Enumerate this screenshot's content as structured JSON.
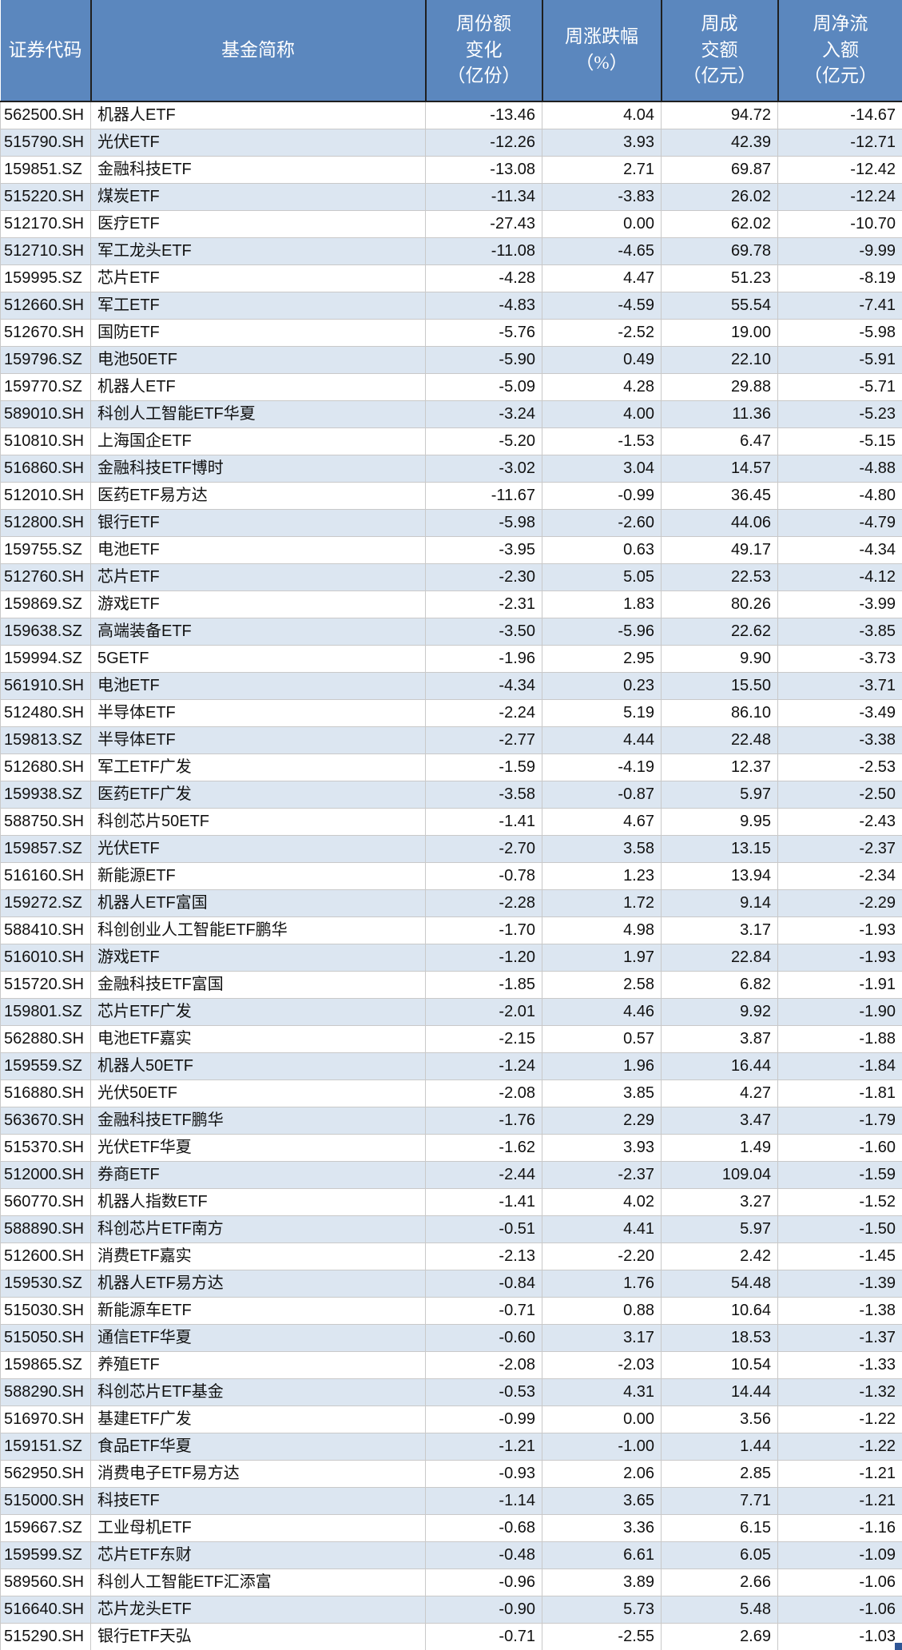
{
  "colors": {
    "header_bg": "#5b87be",
    "header_text": "#ffffff",
    "stripe": "#dce6f1",
    "grid": "#c9c9c9",
    "header_divider": "#1f1f1f",
    "fill_handle": "#2e5596"
  },
  "chart_data": {
    "type": "table",
    "title": "",
    "columns": [
      {
        "key": "code",
        "label": "证券代码"
      },
      {
        "key": "name",
        "label": "基金简称"
      },
      {
        "key": "share_change",
        "label": "周份额\n变化\n（亿份）"
      },
      {
        "key": "pct_change",
        "label": "周涨跌幅\n（%）"
      },
      {
        "key": "turnover",
        "label": "周成\n交额\n（亿元）"
      },
      {
        "key": "net_inflow",
        "label": "周净流\n入额\n（亿元）"
      }
    ],
    "rows": [
      [
        "562500.SH",
        "机器人ETF",
        "-13.46",
        "4.04",
        "94.72",
        "-14.67"
      ],
      [
        "515790.SH",
        "光伏ETF",
        "-12.26",
        "3.93",
        "42.39",
        "-12.71"
      ],
      [
        "159851.SZ",
        "金融科技ETF",
        "-13.08",
        "2.71",
        "69.87",
        "-12.42"
      ],
      [
        "515220.SH",
        "煤炭ETF",
        "-11.34",
        "-3.83",
        "26.02",
        "-12.24"
      ],
      [
        "512170.SH",
        "医疗ETF",
        "-27.43",
        "0.00",
        "62.02",
        "-10.70"
      ],
      [
        "512710.SH",
        "军工龙头ETF",
        "-11.08",
        "-4.65",
        "69.78",
        "-9.99"
      ],
      [
        "159995.SZ",
        "芯片ETF",
        "-4.28",
        "4.47",
        "51.23",
        "-8.19"
      ],
      [
        "512660.SH",
        "军工ETF",
        "-4.83",
        "-4.59",
        "55.54",
        "-7.41"
      ],
      [
        "512670.SH",
        "国防ETF",
        "-5.76",
        "-2.52",
        "19.00",
        "-5.98"
      ],
      [
        "159796.SZ",
        "电池50ETF",
        "-5.90",
        "0.49",
        "22.10",
        "-5.91"
      ],
      [
        "159770.SZ",
        "机器人ETF",
        "-5.09",
        "4.28",
        "29.88",
        "-5.71"
      ],
      [
        "589010.SH",
        "科创人工智能ETF华夏",
        "-3.24",
        "4.00",
        "11.36",
        "-5.23"
      ],
      [
        "510810.SH",
        "上海国企ETF",
        "-5.20",
        "-1.53",
        "6.47",
        "-5.15"
      ],
      [
        "516860.SH",
        "金融科技ETF博时",
        "-3.02",
        "3.04",
        "14.57",
        "-4.88"
      ],
      [
        "512010.SH",
        "医药ETF易方达",
        "-11.67",
        "-0.99",
        "36.45",
        "-4.80"
      ],
      [
        "512800.SH",
        "银行ETF",
        "-5.98",
        "-2.60",
        "44.06",
        "-4.79"
      ],
      [
        "159755.SZ",
        "电池ETF",
        "-3.95",
        "0.63",
        "49.17",
        "-4.34"
      ],
      [
        "512760.SH",
        "芯片ETF",
        "-2.30",
        "5.05",
        "22.53",
        "-4.12"
      ],
      [
        "159869.SZ",
        "游戏ETF",
        "-2.31",
        "1.83",
        "80.26",
        "-3.99"
      ],
      [
        "159638.SZ",
        "高端装备ETF",
        "-3.50",
        "-5.96",
        "22.62",
        "-3.85"
      ],
      [
        "159994.SZ",
        "5GETF",
        "-1.96",
        "2.95",
        "9.90",
        "-3.73"
      ],
      [
        "561910.SH",
        "电池ETF",
        "-4.34",
        "0.23",
        "15.50",
        "-3.71"
      ],
      [
        "512480.SH",
        "半导体ETF",
        "-2.24",
        "5.19",
        "86.10",
        "-3.49"
      ],
      [
        "159813.SZ",
        "半导体ETF",
        "-2.77",
        "4.44",
        "22.48",
        "-3.38"
      ],
      [
        "512680.SH",
        "军工ETF广发",
        "-1.59",
        "-4.19",
        "12.37",
        "-2.53"
      ],
      [
        "159938.SZ",
        "医药ETF广发",
        "-3.58",
        "-0.87",
        "5.97",
        "-2.50"
      ],
      [
        "588750.SH",
        "科创芯片50ETF",
        "-1.41",
        "4.67",
        "9.95",
        "-2.43"
      ],
      [
        "159857.SZ",
        "光伏ETF",
        "-2.70",
        "3.58",
        "13.15",
        "-2.37"
      ],
      [
        "516160.SH",
        "新能源ETF",
        "-0.78",
        "1.23",
        "13.94",
        "-2.34"
      ],
      [
        "159272.SZ",
        "机器人ETF富国",
        "-2.28",
        "1.72",
        "9.14",
        "-2.29"
      ],
      [
        "588410.SH",
        "科创创业人工智能ETF鹏华",
        "-1.70",
        "4.98",
        "3.17",
        "-1.93"
      ],
      [
        "516010.SH",
        "游戏ETF",
        "-1.20",
        "1.97",
        "22.84",
        "-1.93"
      ],
      [
        "515720.SH",
        "金融科技ETF富国",
        "-1.85",
        "2.58",
        "6.82",
        "-1.91"
      ],
      [
        "159801.SZ",
        "芯片ETF广发",
        "-2.01",
        "4.46",
        "9.92",
        "-1.90"
      ],
      [
        "562880.SH",
        "电池ETF嘉实",
        "-2.15",
        "0.57",
        "3.87",
        "-1.88"
      ],
      [
        "159559.SZ",
        "机器人50ETF",
        "-1.24",
        "1.96",
        "16.44",
        "-1.84"
      ],
      [
        "516880.SH",
        "光伏50ETF",
        "-2.08",
        "3.85",
        "4.27",
        "-1.81"
      ],
      [
        "563670.SH",
        "金融科技ETF鹏华",
        "-1.76",
        "2.29",
        "3.47",
        "-1.79"
      ],
      [
        "515370.SH",
        "光伏ETF华夏",
        "-1.62",
        "3.93",
        "1.49",
        "-1.60"
      ],
      [
        "512000.SH",
        "券商ETF",
        "-2.44",
        "-2.37",
        "109.04",
        "-1.59"
      ],
      [
        "560770.SH",
        "机器人指数ETF",
        "-1.41",
        "4.02",
        "3.27",
        "-1.52"
      ],
      [
        "588890.SH",
        "科创芯片ETF南方",
        "-0.51",
        "4.41",
        "5.97",
        "-1.50"
      ],
      [
        "512600.SH",
        "消费ETF嘉实",
        "-2.13",
        "-2.20",
        "2.42",
        "-1.45"
      ],
      [
        "159530.SZ",
        "机器人ETF易方达",
        "-0.84",
        "1.76",
        "54.48",
        "-1.39"
      ],
      [
        "515030.SH",
        "新能源车ETF",
        "-0.71",
        "0.88",
        "10.64",
        "-1.38"
      ],
      [
        "515050.SH",
        "通信ETF华夏",
        "-0.60",
        "3.17",
        "18.53",
        "-1.37"
      ],
      [
        "159865.SZ",
        "养殖ETF",
        "-2.08",
        "-2.03",
        "10.54",
        "-1.33"
      ],
      [
        "588290.SH",
        "科创芯片ETF基金",
        "-0.53",
        "4.31",
        "14.44",
        "-1.32"
      ],
      [
        "516970.SH",
        "基建ETF广发",
        "-0.99",
        "0.00",
        "3.56",
        "-1.22"
      ],
      [
        "159151.SZ",
        "食品ETF华夏",
        "-1.21",
        "-1.00",
        "1.44",
        "-1.22"
      ],
      [
        "562950.SH",
        "消费电子ETF易方达",
        "-0.93",
        "2.06",
        "2.85",
        "-1.21"
      ],
      [
        "515000.SH",
        "科技ETF",
        "-1.14",
        "3.65",
        "7.71",
        "-1.21"
      ],
      [
        "159667.SZ",
        "工业母机ETF",
        "-0.68",
        "3.36",
        "6.15",
        "-1.16"
      ],
      [
        "159599.SZ",
        "芯片ETF东财",
        "-0.48",
        "6.61",
        "6.05",
        "-1.09"
      ],
      [
        "589560.SH",
        "科创人工智能ETF汇添富",
        "-0.96",
        "3.89",
        "2.66",
        "-1.06"
      ],
      [
        "516640.SH",
        "芯片龙头ETF",
        "-0.90",
        "5.73",
        "5.48",
        "-1.06"
      ],
      [
        "515290.SH",
        "银行ETF天弘",
        "-0.71",
        "-2.55",
        "2.69",
        "-1.03"
      ]
    ]
  }
}
